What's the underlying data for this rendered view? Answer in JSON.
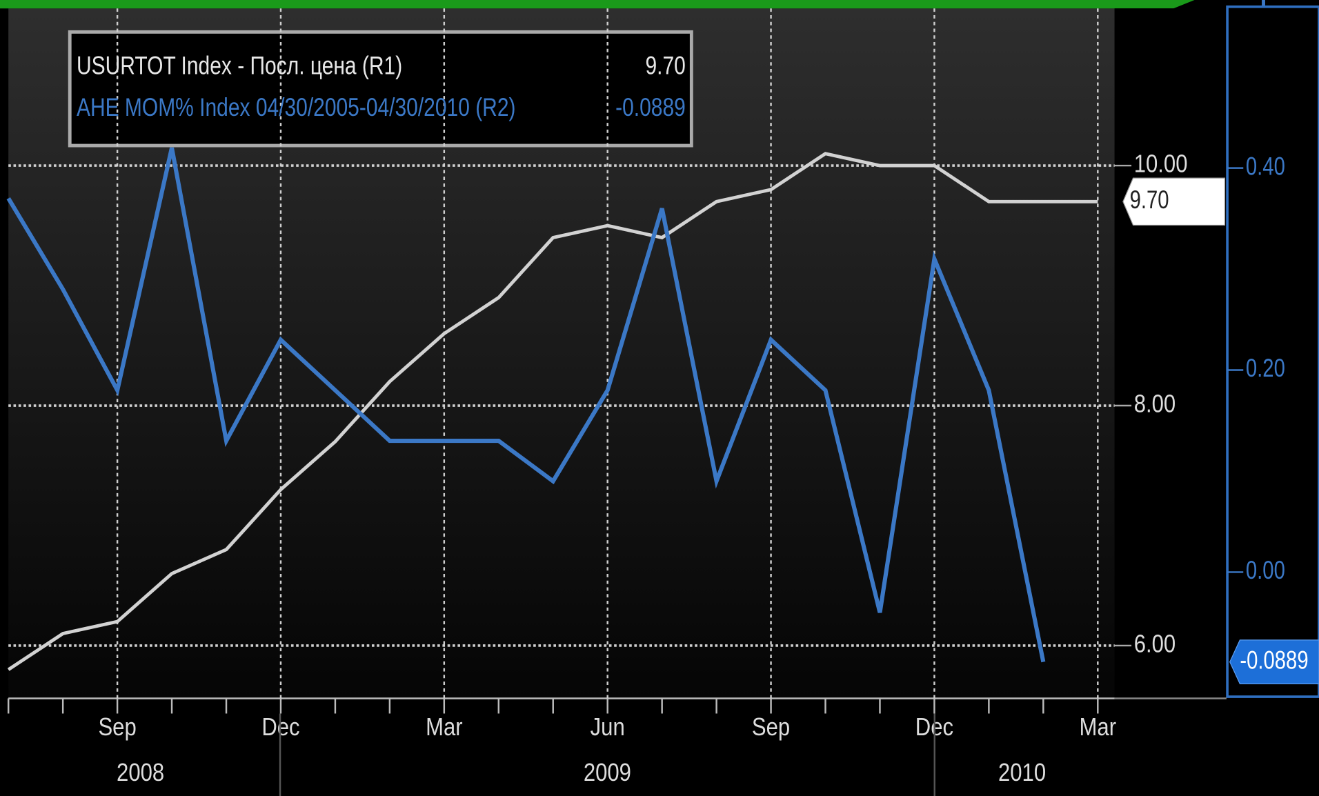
{
  "chart_data": {
    "type": "line",
    "categories": [
      null,
      null,
      "Sep",
      null,
      null,
      "Dec",
      null,
      null,
      "Mar",
      null,
      null,
      "Jun",
      null,
      null,
      "Sep",
      null,
      null,
      "Dec",
      null,
      null,
      "Mar"
    ],
    "year_labels": [
      "2008",
      "2009",
      "2010"
    ],
    "series": [
      {
        "name": "USURTOT Index - Посл. цена (R1)",
        "color": "#d2d2d2",
        "axis": "y",
        "last_value_label": "9.70",
        "values": [
          5.8,
          6.1,
          6.2,
          6.6,
          6.8,
          7.3,
          7.7,
          8.2,
          8.6,
          8.9,
          9.4,
          9.5,
          9.4,
          9.7,
          9.8,
          10.1,
          10.0,
          10.0,
          9.7,
          9.7,
          9.7
        ]
      },
      {
        "name": "AHE MOM% Index 04/30/2005-04/30/2010  (R2)",
        "color": "#3b78c6",
        "axis": "y2",
        "last_value_label": "-0.0889",
        "values": [
          0.37,
          0.28,
          0.18,
          0.42,
          0.13,
          0.23,
          0.18,
          0.13,
          0.13,
          0.13,
          0.09,
          0.18,
          0.36,
          0.09,
          0.23,
          0.18,
          -0.04,
          0.31,
          0.18,
          -0.0889,
          null
        ]
      }
    ],
    "ylim": [
      5.56,
      11.31
    ],
    "yticks": [
      {
        "value": 6,
        "label": "6.00"
      },
      {
        "value": 8,
        "label": "8.00"
      },
      {
        "value": 10,
        "label": "10.00"
      }
    ],
    "y2lim": [
      -0.125,
      0.558
    ],
    "y2ticks": [
      {
        "value": 0,
        "label": "0.00"
      },
      {
        "value": 0.2,
        "label": "0.20"
      },
      {
        "value": 0.4,
        "label": "0.40"
      }
    ],
    "grid": true
  }
}
